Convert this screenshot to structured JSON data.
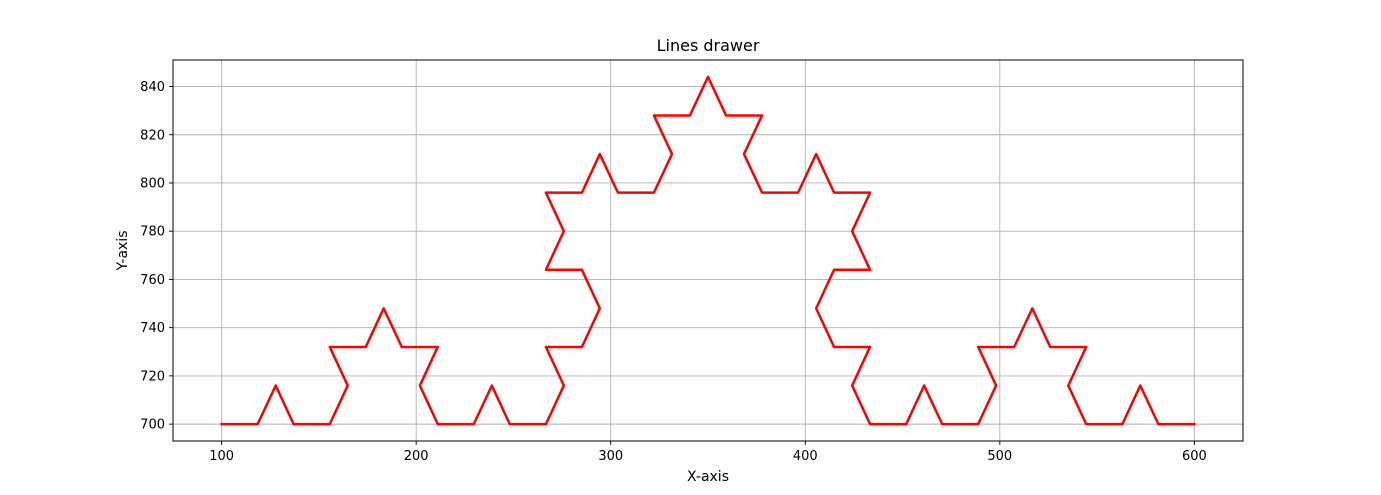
{
  "chart_data": {
    "type": "line",
    "title": "Lines drawer",
    "xlabel": "X-axis",
    "ylabel": "Y-axis",
    "xlim": [
      75.0,
      625.0
    ],
    "ylim": [
      693.0,
      851.0
    ],
    "xticks": [
      100,
      200,
      300,
      400,
      500,
      600
    ],
    "yticks": [
      700,
      720,
      740,
      760,
      780,
      800,
      820,
      840
    ],
    "grid": true,
    "series": [
      {
        "color": "#ff0000",
        "x": [
          100,
          118.5,
          127.8,
          137.0,
          155.6,
          164.8,
          155.6,
          174.1,
          183.3,
          192.6,
          211.1,
          201.9,
          211.1,
          229.6,
          238.9,
          248.1,
          266.7,
          275.9,
          266.7,
          285.2,
          294.4,
          285.2,
          266.7,
          275.9,
          266.7,
          285.2,
          294.4,
          303.7,
          322.2,
          331.5,
          322.2,
          340.7,
          350.0,
          359.3,
          377.8,
          368.5,
          377.8,
          396.3,
          405.6,
          414.8,
          433.3,
          424.1,
          433.3,
          414.8,
          405.6,
          414.8,
          433.3,
          424.1,
          433.3,
          451.9,
          461.1,
          470.4,
          488.9,
          498.1,
          488.9,
          507.4,
          516.7,
          525.9,
          544.4,
          535.2,
          544.4,
          563.0,
          572.2,
          581.5,
          600.0
        ],
        "y": [
          700,
          700,
          716,
          700,
          700,
          716,
          732,
          732,
          748,
          732,
          732,
          716,
          700,
          700,
          716,
          700,
          700,
          716,
          732,
          732,
          748,
          764,
          764,
          780,
          796,
          796,
          812,
          796,
          796,
          812,
          828,
          828,
          844,
          828,
          828,
          812,
          796,
          796,
          812,
          796,
          796,
          780,
          764,
          764,
          748,
          732,
          732,
          716,
          700,
          700,
          716,
          700,
          700,
          716,
          732,
          732,
          748,
          732,
          732,
          716,
          700,
          700,
          716,
          700,
          700
        ]
      }
    ]
  }
}
